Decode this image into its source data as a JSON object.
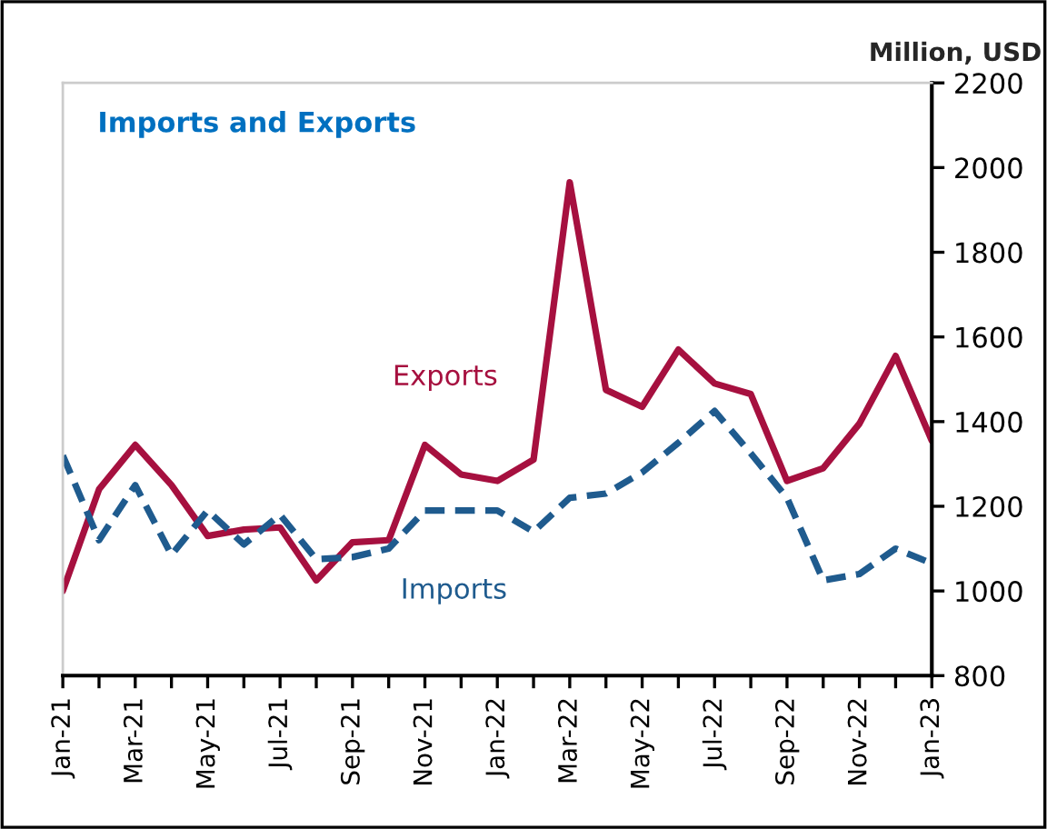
{
  "chart_data": {
    "type": "line",
    "title": "Imports and Exports",
    "ylabel": "Million, USD",
    "categories": [
      "Jan-21",
      null,
      "Mar-21",
      null,
      "May-21",
      null,
      "Jul-21",
      null,
      "Sep-21",
      null,
      "Nov-21",
      null,
      "Jan-22",
      null,
      "Mar-22",
      null,
      "May-22",
      null,
      "Jul-22",
      null,
      "Sep-22",
      null,
      "Nov-22",
      null,
      "Jan-23"
    ],
    "series": [
      {
        "name": "Exports",
        "color": "#a6103f",
        "line_style": "solid",
        "values": [
          1000,
          1240,
          1345,
          1250,
          1130,
          1145,
          1150,
          1025,
          1115,
          1120,
          1345,
          1275,
          1260,
          1310,
          1965,
          1475,
          1435,
          1570,
          1490,
          1465,
          1260,
          1290,
          1395,
          1555,
          1355
        ]
      },
      {
        "name": "Imports",
        "color": "#1f5b8e",
        "line_style": "dashed",
        "values": [
          1320,
          1120,
          1250,
          1085,
          1190,
          1110,
          1180,
          1075,
          1080,
          1100,
          1190,
          1190,
          1190,
          1140,
          1220,
          1230,
          1280,
          1350,
          1425,
          1325,
          1220,
          1025,
          1040,
          1100,
          1065
        ]
      }
    ],
    "ylim": [
      800,
      2200
    ],
    "yticks": [
      800,
      1000,
      1200,
      1400,
      1600,
      1800,
      2000,
      2200
    ],
    "grid": false,
    "legend": false,
    "marker": "none"
  }
}
